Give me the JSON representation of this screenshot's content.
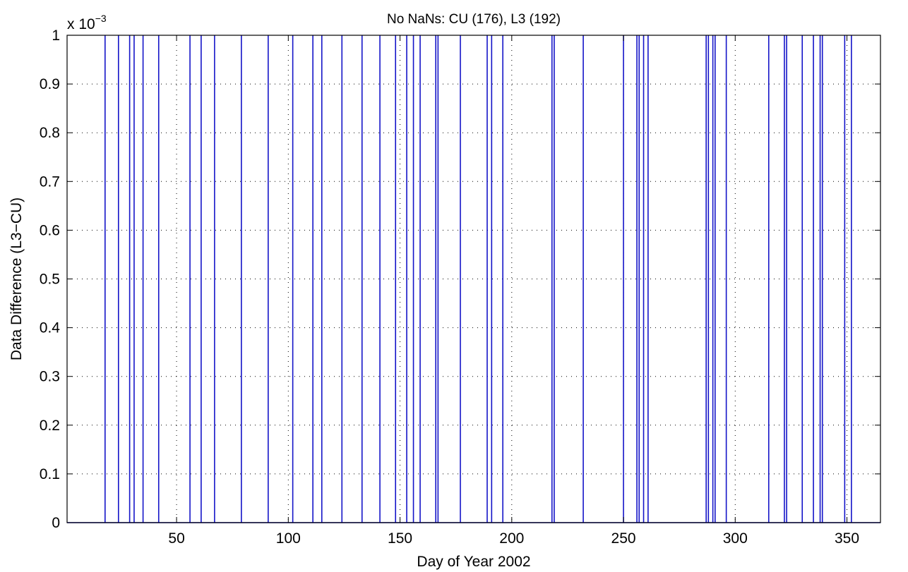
{
  "chart_data": {
    "type": "line",
    "title": "No NaNs:  CU (176), L3 (192)",
    "xlabel": "Day of Year 2002",
    "ylabel": "Data Difference (L3−CU)",
    "y_multiplier_base": "x 10",
    "y_multiplier_exponent": "−3",
    "xlim": [
      1,
      365
    ],
    "ylim": [
      0,
      1
    ],
    "grid": true,
    "x_ticks": [
      50,
      100,
      150,
      200,
      250,
      300,
      350
    ],
    "x_tick_labels": [
      "50",
      "100",
      "150",
      "200",
      "250",
      "300",
      "350"
    ],
    "y_ticks": [
      0,
      0.1,
      0.2,
      0.3,
      0.4,
      0.5,
      0.6,
      0.7,
      0.8,
      0.9,
      1
    ],
    "y_tick_labels": [
      "0",
      "0.1",
      "0.2",
      "0.3",
      "0.4",
      "0.5",
      "0.6",
      "0.7",
      "0.8",
      "0.9",
      "1"
    ],
    "baseline": 0,
    "spike_value": 1,
    "spike_days": [
      18,
      24,
      29,
      31,
      35,
      42,
      56,
      61,
      67,
      79,
      91,
      102,
      111,
      115,
      124,
      133,
      141,
      148,
      153,
      156,
      159,
      166,
      167,
      177,
      189,
      191,
      196,
      218,
      219,
      232,
      250,
      256,
      257,
      259,
      261,
      287,
      288,
      290,
      291,
      296,
      315,
      322,
      323,
      330,
      335,
      338,
      339,
      349,
      352
    ],
    "colors": {
      "line": "#1414c8",
      "axes": "#000000"
    }
  }
}
